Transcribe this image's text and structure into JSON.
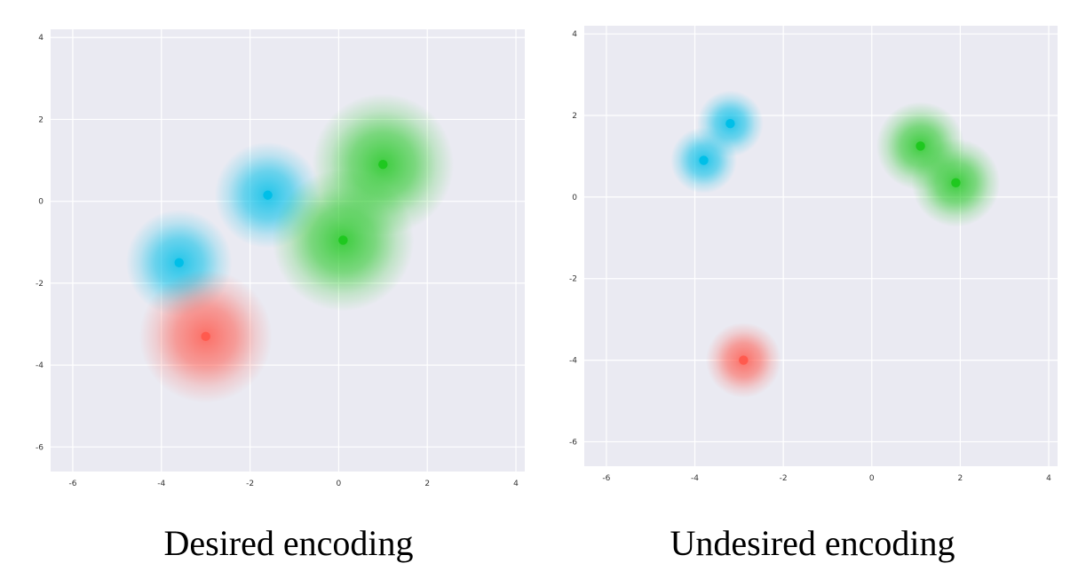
{
  "colors": {
    "plot_bg": "#EAEAF2",
    "grid": "#FFFFFF",
    "cyan": "#00BFE8",
    "green": "#1FC81F",
    "red": "#FF5A4E"
  },
  "chart_data": [
    {
      "type": "scatter",
      "title": "",
      "xlabel": "",
      "ylabel": "",
      "xlim": [
        -6.5,
        4.2
      ],
      "ylim": [
        -6.6,
        4.2
      ],
      "xticks": [
        -6,
        -4,
        -2,
        0,
        2,
        4
      ],
      "yticks": [
        4,
        2,
        0,
        -2,
        -4,
        -6
      ],
      "grid": true,
      "series": [
        {
          "color": "cyan",
          "points": [
            [
              -1.6,
              0.15
            ],
            [
              -3.6,
              -1.5
            ]
          ],
          "blur": 1.2
        },
        {
          "color": "green",
          "points": [
            [
              1.0,
              0.9
            ],
            [
              0.1,
              -0.95
            ]
          ],
          "blur": 1.6
        },
        {
          "color": "red",
          "points": [
            [
              -3.0,
              -3.3
            ]
          ],
          "blur": 1.5
        }
      ],
      "caption": "Desired encoding"
    },
    {
      "type": "scatter",
      "title": "",
      "xlabel": "",
      "ylabel": "",
      "xlim": [
        -6.5,
        4.2
      ],
      "ylim": [
        -6.6,
        4.2
      ],
      "xticks": [
        -6,
        -4,
        -2,
        0,
        2,
        4
      ],
      "yticks": [
        4,
        2,
        0,
        -2,
        -4,
        -6
      ],
      "grid": true,
      "series": [
        {
          "color": "cyan",
          "points": [
            [
              -3.2,
              1.8
            ],
            [
              -3.8,
              0.9
            ]
          ],
          "blur": 0.75
        },
        {
          "color": "green",
          "points": [
            [
              1.1,
              1.25
            ],
            [
              1.9,
              0.35
            ]
          ],
          "blur": 1.0
        },
        {
          "color": "red",
          "points": [
            [
              -2.9,
              -4.0
            ]
          ],
          "blur": 0.85
        }
      ],
      "caption": "Undesired encoding"
    }
  ]
}
